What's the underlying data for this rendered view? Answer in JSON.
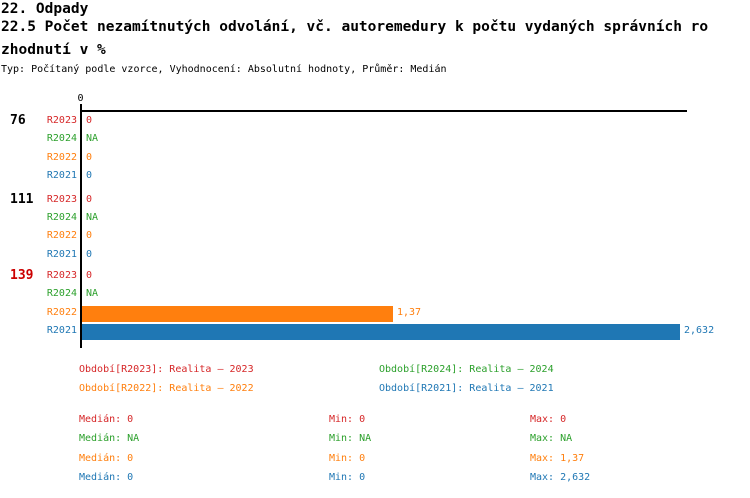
{
  "page": {
    "title": "22. Odpady",
    "subtitle_line1": "22.5 Počet nezamítnutých odvolání, vč. autoremedury k počtu vydaných správních ro",
    "subtitle_line2": "zhodnutí v %",
    "meta": "Typ: Počítaný podle vzorce, Vyhodnocení: Absolutní hodnoty, Průměr: Medián"
  },
  "colors": {
    "r2023": "#d62728",
    "r2024": "#2ca02c",
    "r2022": "#ff7f0e",
    "r2021": "#1f77b4",
    "group_normal": "#000000",
    "group_highlight": "#cc0000",
    "axis": "#000000"
  },
  "chart_data": {
    "type": "bar",
    "orientation": "horizontal",
    "axis_origin_label": "0",
    "value_format": "decimal-comma",
    "series_order": [
      "R2023",
      "R2024",
      "R2022",
      "R2021"
    ],
    "groups": [
      {
        "label": "76",
        "label_color": "#000000",
        "rows": [
          {
            "series": "R2023",
            "color": "#d62728",
            "value": 0,
            "value_text": "0"
          },
          {
            "series": "R2024",
            "color": "#2ca02c",
            "value": null,
            "value_text": "NA"
          },
          {
            "series": "R2022",
            "color": "#ff7f0e",
            "value": 0,
            "value_text": "0"
          },
          {
            "series": "R2021",
            "color": "#1f77b4",
            "value": 0,
            "value_text": "0"
          }
        ]
      },
      {
        "label": "111",
        "label_color": "#000000",
        "rows": [
          {
            "series": "R2023",
            "color": "#d62728",
            "value": 0,
            "value_text": "0"
          },
          {
            "series": "R2024",
            "color": "#2ca02c",
            "value": null,
            "value_text": "NA"
          },
          {
            "series": "R2022",
            "color": "#ff7f0e",
            "value": 0,
            "value_text": "0"
          },
          {
            "series": "R2021",
            "color": "#1f77b4",
            "value": 0,
            "value_text": "0"
          }
        ]
      },
      {
        "label": "139",
        "label_color": "#cc0000",
        "rows": [
          {
            "series": "R2023",
            "color": "#d62728",
            "value": 0,
            "value_text": "0"
          },
          {
            "series": "R2024",
            "color": "#2ca02c",
            "value": null,
            "value_text": "NA"
          },
          {
            "series": "R2022",
            "color": "#ff7f0e",
            "value": 1.37,
            "value_text": "1,37"
          },
          {
            "series": "R2021",
            "color": "#1f77b4",
            "value": 2.632,
            "value_text": "2,632"
          }
        ]
      }
    ]
  },
  "legend": [
    {
      "label": "Období[R2023]: Realita – 2023",
      "color": "#d62728"
    },
    {
      "label": "Období[R2024]: Realita – 2024",
      "color": "#2ca02c"
    },
    {
      "label": "Období[R2022]: Realita – 2022",
      "color": "#ff7f0e"
    },
    {
      "label": "Období[R2021]: Realita – 2021",
      "color": "#1f77b4"
    }
  ],
  "stats": [
    {
      "color": "#d62728",
      "median": "Medián: 0",
      "min": "Min: 0",
      "max": "Max: 0"
    },
    {
      "color": "#2ca02c",
      "median": "Medián: NA",
      "min": "Min: NA",
      "max": "Max: NA"
    },
    {
      "color": "#ff7f0e",
      "median": "Medián: 0",
      "min": "Min: 0",
      "max": "Max: 1,37"
    },
    {
      "color": "#1f77b4",
      "median": "Medián: 0",
      "min": "Min: 0",
      "max": "Max: 2,632"
    }
  ]
}
